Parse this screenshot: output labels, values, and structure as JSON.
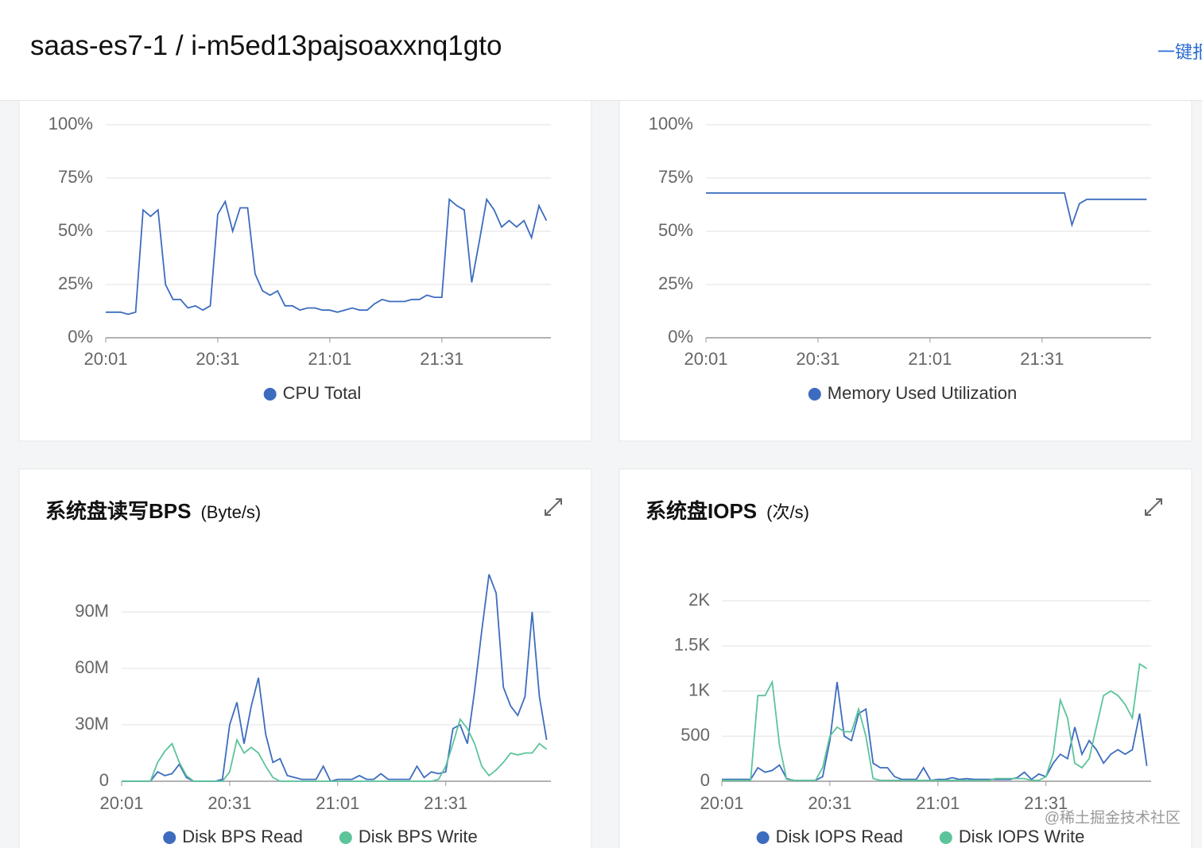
{
  "header": {
    "title": "saas-es7-1 / i-m5ed13pajsoaxxnq1gto",
    "action": "一键报警"
  },
  "watermark": "@稀土掘金技术社区",
  "chart_data": [
    {
      "type": "line",
      "categories": [
        "20:01",
        null,
        null,
        null,
        null,
        null,
        null,
        null,
        null,
        null,
        null,
        null,
        null,
        null,
        null,
        "20:31",
        null,
        null,
        null,
        null,
        null,
        null,
        null,
        null,
        null,
        null,
        null,
        null,
        null,
        null,
        "21:01",
        null,
        null,
        null,
        null,
        null,
        null,
        null,
        null,
        null,
        null,
        null,
        null,
        null,
        null,
        "21:31",
        null,
        null,
        null,
        null,
        null,
        null,
        null,
        null,
        null,
        null,
        null,
        null,
        null,
        null
      ],
      "ylim": [
        0,
        100
      ],
      "yticks": [
        {
          "value": 0,
          "label": "0%"
        },
        {
          "value": 25,
          "label": "25%"
        },
        {
          "value": 50,
          "label": "50%"
        },
        {
          "value": 75,
          "label": "75%"
        },
        {
          "value": 100,
          "label": "100%"
        }
      ],
      "grid": true,
      "legend": "bottom",
      "series": [
        {
          "name": "CPU Total",
          "color": "#3d6cbf",
          "values": [
            12,
            12,
            12,
            11,
            12,
            60,
            57,
            60,
            25,
            18,
            18,
            14,
            15,
            13,
            15,
            58,
            64,
            50,
            61,
            61,
            30,
            22,
            20,
            22,
            15,
            15,
            13,
            14,
            14,
            13,
            13,
            12,
            13,
            14,
            13,
            13,
            16,
            18,
            17,
            17,
            17,
            18,
            18,
            20,
            19,
            19,
            65,
            62,
            60,
            26,
            45,
            65,
            60,
            52,
            55,
            52,
            55,
            47,
            62,
            55
          ]
        }
      ]
    },
    {
      "type": "line",
      "categories": [
        "20:01",
        null,
        null,
        null,
        null,
        null,
        null,
        null,
        null,
        null,
        null,
        null,
        null,
        null,
        null,
        "20:31",
        null,
        null,
        null,
        null,
        null,
        null,
        null,
        null,
        null,
        null,
        null,
        null,
        null,
        null,
        "21:01",
        null,
        null,
        null,
        null,
        null,
        null,
        null,
        null,
        null,
        null,
        null,
        null,
        null,
        null,
        "21:31",
        null,
        null,
        null,
        null,
        null,
        null,
        null,
        null,
        null,
        null,
        null,
        null,
        null,
        null
      ],
      "ylim": [
        0,
        100
      ],
      "yticks": [
        {
          "value": 0,
          "label": "0%"
        },
        {
          "value": 25,
          "label": "25%"
        },
        {
          "value": 50,
          "label": "50%"
        },
        {
          "value": 75,
          "label": "75%"
        },
        {
          "value": 100,
          "label": "100%"
        }
      ],
      "grid": true,
      "legend": "bottom",
      "series": [
        {
          "name": "Memory Used Utilization",
          "color": "#3d6cbf",
          "values": [
            68,
            68,
            68,
            68,
            68,
            68,
            68,
            68,
            68,
            68,
            68,
            68,
            68,
            68,
            68,
            68,
            68,
            68,
            68,
            68,
            68,
            68,
            68,
            68,
            68,
            68,
            68,
            68,
            68,
            68,
            68,
            68,
            68,
            68,
            68,
            68,
            68,
            68,
            68,
            68,
            68,
            68,
            68,
            68,
            68,
            68,
            68,
            68,
            68,
            53,
            63,
            65,
            65,
            65,
            65,
            65,
            65,
            65,
            65,
            65
          ]
        }
      ]
    },
    {
      "type": "line",
      "title": "系统盘读写BPS",
      "subtitle": "(Byte/s)",
      "categories": [
        "20:01",
        null,
        null,
        null,
        null,
        null,
        null,
        null,
        null,
        null,
        null,
        null,
        null,
        null,
        null,
        "20:31",
        null,
        null,
        null,
        null,
        null,
        null,
        null,
        null,
        null,
        null,
        null,
        null,
        null,
        null,
        "21:01",
        null,
        null,
        null,
        null,
        null,
        null,
        null,
        null,
        null,
        null,
        null,
        null,
        null,
        null,
        "21:31",
        null,
        null,
        null,
        null,
        null,
        null,
        null,
        null,
        null,
        null,
        null,
        null,
        null,
        null
      ],
      "ylim": [
        0,
        120000000
      ],
      "yticks": [
        0,
        {
          "value": 30000000,
          "label": "30M"
        },
        {
          "value": 60000000,
          "label": "60M"
        },
        {
          "value": 90000000,
          "label": "90M"
        }
      ],
      "grid": true,
      "legend": "bottom",
      "series": [
        {
          "name": "Disk BPS Read",
          "color": "#3d6cbf",
          "values": [
            0,
            0,
            0,
            0,
            0,
            5000000,
            3000000,
            4000000,
            9000000,
            2000000,
            0,
            0,
            0,
            0,
            1000000,
            30000000,
            42000000,
            20000000,
            40000000,
            55000000,
            25000000,
            10000000,
            12000000,
            3000000,
            2000000,
            1000000,
            1000000,
            1000000,
            8000000,
            0,
            1000000,
            1000000,
            1000000,
            3000000,
            1000000,
            1000000,
            4000000,
            1000000,
            1000000,
            1000000,
            1000000,
            8000000,
            2000000,
            5000000,
            4000000,
            5000000,
            28000000,
            30000000,
            20000000,
            48000000,
            80000000,
            110000000,
            100000000,
            50000000,
            40000000,
            35000000,
            45000000,
            90000000,
            45000000,
            22000000
          ]
        },
        {
          "name": "Disk BPS Write",
          "color": "#5cc49a",
          "values": [
            0,
            0,
            0,
            0,
            0,
            10000000,
            16000000,
            20000000,
            10000000,
            3000000,
            0,
            0,
            0,
            0,
            0,
            5000000,
            22000000,
            15000000,
            18000000,
            15000000,
            8000000,
            2000000,
            0,
            0,
            0,
            0,
            0,
            0,
            0,
            0,
            0,
            0,
            0,
            0,
            0,
            0,
            0,
            0,
            0,
            0,
            0,
            0,
            0,
            0,
            1000000,
            8000000,
            20000000,
            33000000,
            28000000,
            20000000,
            8000000,
            3000000,
            6000000,
            10000000,
            15000000,
            14000000,
            15000000,
            15000000,
            20000000,
            17000000
          ]
        }
      ]
    },
    {
      "type": "line",
      "title": "系统盘IOPS",
      "subtitle": "(次/s)",
      "categories": [
        "20:01",
        null,
        null,
        null,
        null,
        null,
        null,
        null,
        null,
        null,
        null,
        null,
        null,
        null,
        null,
        "20:31",
        null,
        null,
        null,
        null,
        null,
        null,
        null,
        null,
        null,
        null,
        null,
        null,
        null,
        null,
        "21:01",
        null,
        null,
        null,
        null,
        null,
        null,
        null,
        null,
        null,
        null,
        null,
        null,
        null,
        null,
        "21:31",
        null,
        null,
        null,
        null,
        null,
        null,
        null,
        null,
        null,
        null,
        null,
        null,
        null,
        null
      ],
      "ylim": [
        0,
        2000
      ],
      "yticks": [
        0,
        500,
        {
          "value": 1000,
          "label": "1K"
        },
        {
          "value": 1500,
          "label": "1.5K"
        },
        {
          "value": 2000,
          "label": "2K"
        }
      ],
      "grid": true,
      "legend": "bottom",
      "series": [
        {
          "name": "Disk IOPS Read",
          "color": "#3d6cbf",
          "values": [
            20,
            20,
            20,
            20,
            20,
            150,
            100,
            120,
            180,
            30,
            10,
            10,
            10,
            10,
            50,
            450,
            1100,
            500,
            450,
            750,
            800,
            200,
            150,
            150,
            50,
            20,
            20,
            20,
            150,
            10,
            20,
            20,
            40,
            20,
            30,
            20,
            20,
            20,
            20,
            20,
            20,
            40,
            100,
            20,
            80,
            50,
            200,
            300,
            250,
            600,
            300,
            450,
            350,
            200,
            300,
            350,
            300,
            350,
            750,
            170
          ]
        },
        {
          "name": "Disk IOPS Write",
          "color": "#5cc49a",
          "values": [
            10,
            10,
            10,
            10,
            10,
            950,
            950,
            1100,
            400,
            20,
            10,
            10,
            10,
            10,
            150,
            500,
            600,
            550,
            550,
            800,
            500,
            30,
            10,
            10,
            10,
            10,
            10,
            10,
            10,
            10,
            10,
            10,
            10,
            10,
            10,
            10,
            10,
            10,
            30,
            30,
            30,
            30,
            30,
            10,
            10,
            50,
            300,
            900,
            700,
            200,
            150,
            250,
            600,
            950,
            1000,
            950,
            850,
            700,
            1300,
            1250
          ]
        }
      ]
    }
  ]
}
